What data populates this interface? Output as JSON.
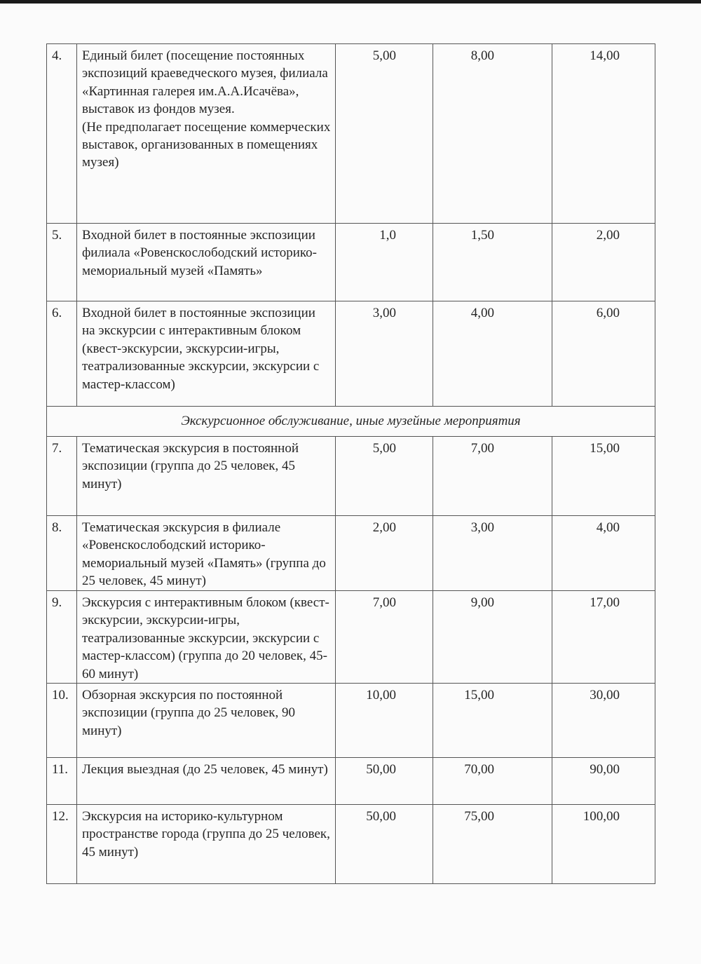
{
  "rows": [
    {
      "num": "4.",
      "text": "Единый билет (посещение постоянных экспозиций краеведческого музея, филиала «Картинная галерея им.А.А.Исачёва», выставок из фондов музея.\n(Не предполагает посещение коммерческих выставок, организованных в помещениях музея)",
      "p1": "5,00",
      "p2": "8,00",
      "p3": "14,00"
    },
    {
      "num": "5.",
      "text": "Входной билет в постоянные экспозиции филиала «Ровенскослободский историко-мемориальный музей «Память»",
      "p1": "1,0",
      "p2": "1,50",
      "p3": "2,00"
    },
    {
      "num": "6.",
      "text": "Входной билет в постоянные экспозиции на экскурсии с интерактивным блоком (квест-экскурсии, экскурсии-игры, театрализованные экскурсии, экскурсии с мастер-классом)",
      "p1": "3,00",
      "p2": "4,00",
      "p3": "6,00"
    },
    {
      "section": "Экскурсионное обслуживание, иные музейные мероприятия"
    },
    {
      "num": "7.",
      "text": "Тематическая экскурсия в постоянной экспозиции (группа до 25 человек, 45 минут)",
      "p1": "5,00",
      "p2": "7,00",
      "p3": "15,00"
    },
    {
      "num": "8.",
      "text": "Тематическая экскурсия в филиале «Ровенскослободский историко-мемориальный музей «Память» (группа до 25 человек, 45 минут)",
      "p1": "2,00",
      "p2": "3,00",
      "p3": "4,00"
    },
    {
      "num": "9.",
      "text": "Экскурсия с интерактивным блоком (квест-экскурсии, экскурсии-игры, театрализованные экскурсии, экскурсии с мастер-классом) (группа до 20 человек, 45-60 минут)",
      "p1": "7,00",
      "p2": "9,00",
      "p3": "17,00"
    },
    {
      "num": "10.",
      "text": "Обзорная экскурсия по постоянной экспозиции (группа до 25 человек, 90 минут)",
      "p1": "10,00",
      "p2": "15,00",
      "p3": "30,00"
    },
    {
      "num": "11.",
      "text": "Лекция выездная (до 25 человек, 45 минут)",
      "p1": "50,00",
      "p2": "70,00",
      "p3": "90,00"
    },
    {
      "num": "12.",
      "text": "Экскурсия на историко-культурном пространстве города (группа до 25 человек, 45 минут)",
      "p1": "50,00",
      "p2": "75,00",
      "p3": "100,00"
    }
  ]
}
